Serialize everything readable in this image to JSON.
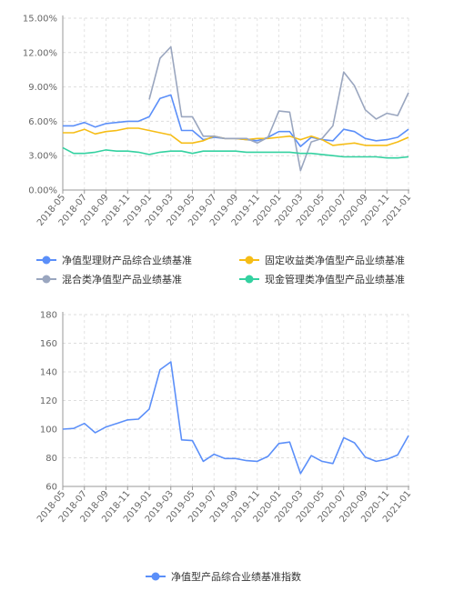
{
  "chart_data": [
    {
      "type": "line",
      "x": [
        "2018-05",
        "2018-06",
        "2018-07",
        "2018-08",
        "2018-09",
        "2018-10",
        "2018-11",
        "2018-12",
        "2019-01",
        "2019-02",
        "2019-03",
        "2019-04",
        "2019-05",
        "2019-06",
        "2019-07",
        "2019-08",
        "2019-09",
        "2019-10",
        "2019-11",
        "2019-12",
        "2020-01",
        "2020-02",
        "2020-03",
        "2020-04",
        "2020-05",
        "2020-06",
        "2020-07",
        "2020-08",
        "2020-09",
        "2020-10",
        "2020-11",
        "2020-12",
        "2021-01"
      ],
      "x_tick_labels": [
        "2018-05",
        "2018-07",
        "2018-09",
        "2018-11",
        "2019-01",
        "2019-03",
        "2019-05",
        "2019-07",
        "2019-09",
        "2019-11",
        "2020-01",
        "2020-03",
        "2020-05",
        "2020-07",
        "2020-09",
        "2020-11",
        "2021-01"
      ],
      "y_tick_labels": [
        "0.00%",
        "3.00%",
        "6.00%",
        "9.00%",
        "12.00%",
        "15.00%"
      ],
      "ylim": [
        0,
        15
      ],
      "grid": true,
      "legend": "bottom",
      "series": [
        {
          "name": "净值型理财产品综合业绩基准",
          "color": "#5b8ff9",
          "values": [
            5.6,
            5.6,
            5.9,
            5.5,
            5.8,
            5.9,
            6.0,
            6.0,
            6.4,
            8.0,
            8.3,
            5.2,
            5.2,
            4.4,
            4.6,
            4.5,
            4.5,
            4.4,
            4.3,
            4.6,
            5.1,
            5.1,
            3.8,
            4.6,
            4.4,
            4.3,
            5.3,
            5.1,
            4.5,
            4.3,
            4.4,
            4.6,
            5.3
          ]
        },
        {
          "name": "固定收益类净值型产品业绩基准",
          "color": "#f6bd16",
          "values": [
            5.0,
            5.0,
            5.3,
            4.9,
            5.1,
            5.2,
            5.4,
            5.4,
            5.2,
            5.0,
            4.8,
            4.1,
            4.1,
            4.3,
            4.7,
            4.5,
            4.5,
            4.4,
            4.5,
            4.5,
            4.6,
            4.7,
            4.4,
            4.7,
            4.4,
            3.9,
            4.0,
            4.1,
            3.9,
            3.9,
            3.9,
            4.2,
            4.6
          ]
        },
        {
          "name": "混合类净值型产品业绩基准",
          "color": "#9aa6bf",
          "values": [
            null,
            null,
            null,
            null,
            null,
            null,
            null,
            null,
            7.9,
            11.5,
            12.5,
            6.4,
            6.4,
            4.7,
            4.7,
            4.5,
            4.5,
            4.5,
            4.1,
            4.6,
            6.9,
            6.8,
            1.7,
            4.2,
            4.5,
            5.6,
            10.3,
            9.1,
            7.0,
            6.2,
            6.7,
            6.5,
            8.5
          ]
        },
        {
          "name": "现金管理类净值型产品业绩基准",
          "color": "#33d1a0",
          "values": [
            3.7,
            3.2,
            3.2,
            3.3,
            3.5,
            3.4,
            3.4,
            3.3,
            3.1,
            3.3,
            3.4,
            3.4,
            3.2,
            3.4,
            3.4,
            3.4,
            3.4,
            3.3,
            3.3,
            3.3,
            3.3,
            3.3,
            3.2,
            3.2,
            3.1,
            3.0,
            2.9,
            2.9,
            2.9,
            2.9,
            2.8,
            2.8,
            2.9
          ]
        }
      ]
    },
    {
      "type": "line",
      "x": [
        "2018-05",
        "2018-06",
        "2018-07",
        "2018-08",
        "2018-09",
        "2018-10",
        "2018-11",
        "2018-12",
        "2019-01",
        "2019-02",
        "2019-03",
        "2019-04",
        "2019-05",
        "2019-06",
        "2019-07",
        "2019-08",
        "2019-09",
        "2019-10",
        "2019-11",
        "2019-12",
        "2020-01",
        "2020-02",
        "2020-03",
        "2020-04",
        "2020-05",
        "2020-06",
        "2020-07",
        "2020-08",
        "2020-09",
        "2020-10",
        "2020-11",
        "2020-12",
        "2021-01"
      ],
      "x_tick_labels": [
        "2018-05",
        "2018-07",
        "2018-09",
        "2018-11",
        "2019-01",
        "2019-03",
        "2019-05",
        "2019-07",
        "2019-09",
        "2019-11",
        "2020-01",
        "2020-03",
        "2020-05",
        "2020-07",
        "2020-09",
        "2020-11",
        "2021-01"
      ],
      "y_tick_labels": [
        "60",
        "80",
        "100",
        "120",
        "140",
        "160",
        "180"
      ],
      "ylim": [
        60,
        180
      ],
      "grid": true,
      "legend": "bottom",
      "series": [
        {
          "name": "净值型产品综合业绩基准指数",
          "color": "#5b8ff9",
          "values": [
            100,
            100.5,
            104,
            97.5,
            101.5,
            104,
            106.5,
            107,
            114,
            141.5,
            147,
            92.5,
            92,
            77.5,
            82.5,
            79.5,
            79.5,
            78,
            77.5,
            81,
            90,
            91,
            69,
            81.5,
            77.5,
            76,
            94,
            90.5,
            80.5,
            77.5,
            79,
            82,
            95.5
          ]
        }
      ]
    }
  ]
}
